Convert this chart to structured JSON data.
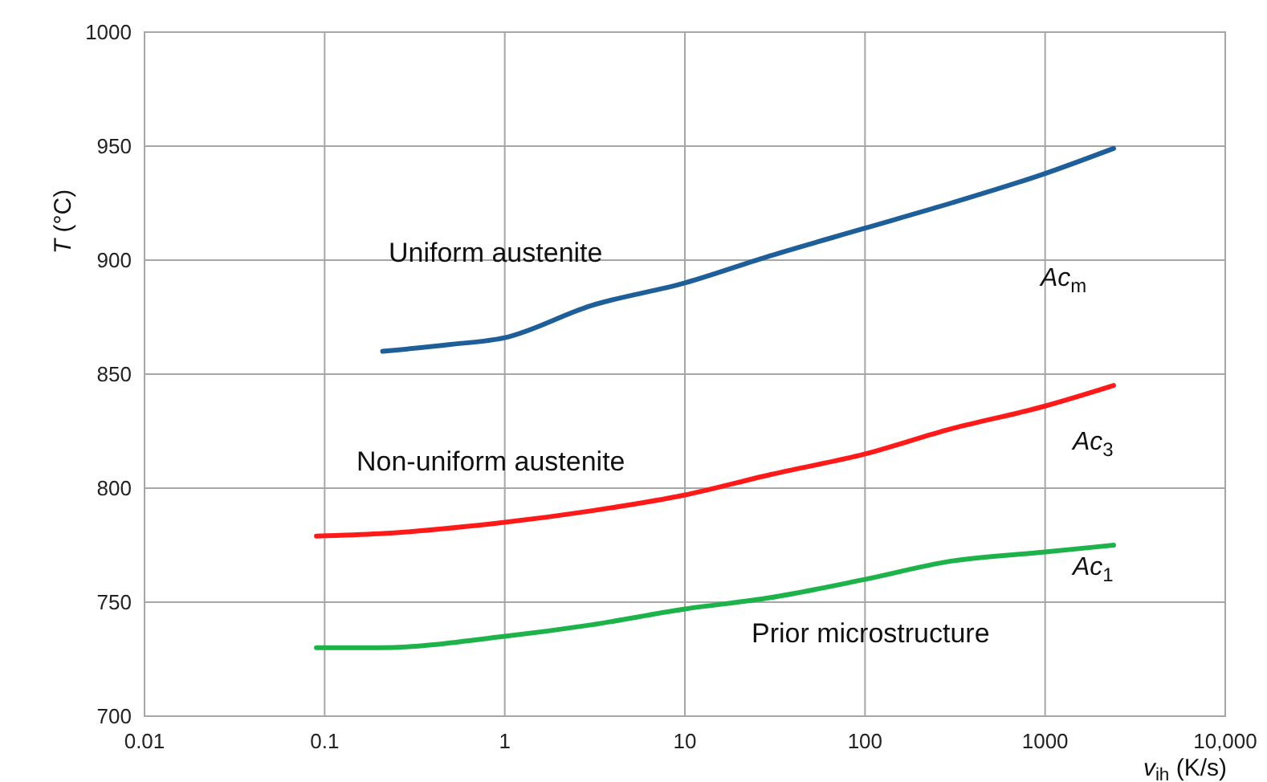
{
  "chart_data": {
    "type": "line",
    "xlabel": "v$_{ih}$ (K/s)",
    "ylabel": "T (°C)",
    "log": "x",
    "grid": true,
    "xlim": [
      0.01,
      10000
    ],
    "xticks": [
      0.01,
      0.1,
      1,
      10,
      100,
      1000,
      {
        "value": 10000,
        "label": "10,000"
      }
    ],
    "ylim": [
      700,
      1000
    ],
    "yticks": [
      700,
      750,
      800,
      850,
      900,
      950,
      1000
    ],
    "marker": "none",
    "line_style": "solid",
    "series": [
      {
        "color": "#1f5f99",
        "x": [
          0.21,
          0.5,
          1,
          3,
          10,
          30,
          100,
          300,
          1000,
          2400
        ],
        "values": [
          860,
          863,
          866,
          880,
          890,
          902,
          914,
          925,
          938,
          949
        ]
      },
      {
        "color": "#ff1a1a",
        "x": [
          0.09,
          0.2,
          1,
          3,
          10,
          30,
          100,
          300,
          1000,
          2400
        ],
        "values": [
          779,
          780,
          785,
          790,
          797,
          806,
          815,
          826,
          836,
          845
        ]
      },
      {
        "color": "#1db34a",
        "x": [
          0.09,
          0.2,
          1,
          3,
          10,
          30,
          100,
          300,
          1000,
          2400
        ],
        "values": [
          730,
          730,
          735,
          740,
          747,
          752,
          760,
          768,
          772,
          775
        ]
      }
    ],
    "annotations": [
      "Uniform  austenite",
      "Non-uniform  austenite",
      "Prior microstructure",
      "Ac$_{m}$",
      "Ac$_{3}$",
      "Ac$_{1}$"
    ]
  }
}
